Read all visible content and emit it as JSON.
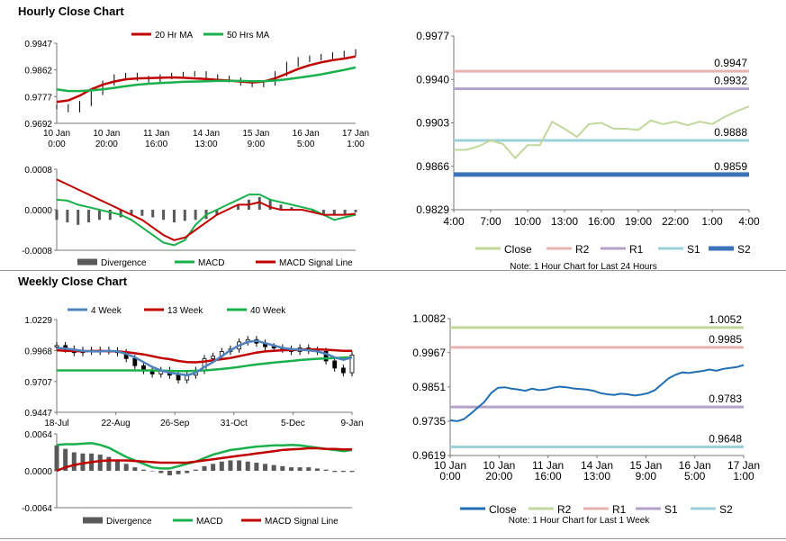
{
  "sections": {
    "hourly_title": "Hourly Close Chart",
    "weekly_title": "Weekly Close Chart"
  },
  "colors": {
    "ma_short": "#c00000",
    "ma_long": "#1ab04c",
    "ma_4w": "#4f81bd",
    "close_light": "#c3d69b",
    "close_dark": "#1f6fb2",
    "r2": "#e6b3b3",
    "r1": "#b3a2c7",
    "s1": "#9bd1d9",
    "s2": "#3b73b9",
    "r2_weekly": "#c3d69b",
    "divergence": "#595959"
  },
  "chart_data": [
    {
      "id": "hourly_price",
      "type": "line",
      "legend": [
        "20 Hr MA",
        "50 Hrs MA"
      ],
      "ylim": [
        0.9692,
        0.9947
      ],
      "yticks": [
        "0.9947",
        "0.9862",
        "0.9777",
        "0.9692"
      ],
      "xticks": [
        "10 Jan\n0:00",
        "10 Jan\n20:00",
        "11 Jan\n16:00",
        "14 Jan\n13:00",
        "15 Jan\n9:00",
        "16 Jan\n5:00",
        "17 Jan\n1:00"
      ],
      "price_approx": [
        0.9745,
        0.9735,
        0.9755,
        0.979,
        0.982,
        0.984,
        0.9845,
        0.9835,
        0.983,
        0.984,
        0.9845,
        0.9848,
        0.985,
        0.984,
        0.9835,
        0.983,
        0.982,
        0.9815,
        0.982,
        0.985,
        0.988,
        0.9895,
        0.99,
        0.9905,
        0.991,
        0.9915,
        0.992
      ],
      "series": [
        {
          "name": "20 Hr MA",
          "values": [
            0.976,
            0.9765,
            0.978,
            0.98,
            0.9815,
            0.9825,
            0.9832,
            0.9835,
            0.9836,
            0.9837,
            0.9838,
            0.9837,
            0.9835,
            0.9833,
            0.983,
            0.9828,
            0.9825,
            0.9822,
            0.9825,
            0.9835,
            0.985,
            0.9865,
            0.9877,
            0.9886,
            0.9893,
            0.9898,
            0.9905
          ]
        },
        {
          "name": "50 Hrs MA",
          "values": [
            0.98,
            0.9795,
            0.9795,
            0.9797,
            0.98,
            0.9805,
            0.981,
            0.9815,
            0.9818,
            0.982,
            0.9822,
            0.9824,
            0.9825,
            0.9826,
            0.9827,
            0.9827,
            0.9827,
            0.9826,
            0.9826,
            0.9828,
            0.9832,
            0.9837,
            0.9842,
            0.9848,
            0.9855,
            0.9862,
            0.987
          ]
        }
      ]
    },
    {
      "id": "hourly_macd",
      "type": "line",
      "legend": [
        "Divergence",
        "MACD",
        "MACD Signal Line"
      ],
      "ylim": [
        -0.0008,
        0.0008
      ],
      "yticks": [
        "0.0008",
        "0.0000",
        "-0.0008"
      ],
      "divergence": [
        -0.0002,
        -0.00025,
        -0.0003,
        -0.00025,
        -0.0002,
        -0.0002,
        -0.00015,
        -0.0001,
        -0.00012,
        -0.00015,
        -0.0002,
        -0.00025,
        -0.00022,
        -0.0002,
        -0.00018,
        -0.0001,
        0.0,
        0.0001,
        0.0002,
        0.00025,
        0.0002,
        0.0001,
        5e-05,
        0.0,
        -5e-05,
        -8e-05,
        -0.0001,
        -8e-05,
        -5e-05
      ],
      "series": [
        {
          "name": "MACD",
          "values": [
            0.0002,
            0.00018,
            0.0001,
            5e-05,
            0.0,
            -5e-05,
            -0.0001,
            -0.0002,
            -0.00035,
            -0.0005,
            -0.00065,
            -0.0007,
            -0.0006,
            -0.0003,
            -0.0001,
            0.0,
            0.0001,
            0.0002,
            0.0003,
            0.0003,
            0.0002,
            0.00015,
            0.0001,
            5e-05,
            0.0,
            -0.0001,
            -0.0002,
            -0.00015,
            -0.0001
          ]
        },
        {
          "name": "MACD Signal Line",
          "values": [
            0.0006,
            0.0005,
            0.0004,
            0.0003,
            0.0002,
            0.0001,
            0.0,
            -0.0001,
            -0.0002,
            -0.00035,
            -0.0005,
            -0.0006,
            -0.00055,
            -0.0004,
            -0.00025,
            -0.0001,
            0.0,
            0.0001,
            0.0001,
            0.00015,
            5e-05,
            0.0,
            0.0,
            0.0,
            -5e-05,
            -0.0001,
            -0.0001,
            -0.0001,
            -8e-05
          ]
        }
      ]
    },
    {
      "id": "hourly_levels",
      "type": "line",
      "ylim": [
        0.9829,
        0.9977
      ],
      "yticks": [
        "0.9977",
        "0.9940",
        "0.9903",
        "0.9866",
        "0.9829"
      ],
      "xticks": [
        "4:00",
        "7:00",
        "10:00",
        "13:00",
        "16:00",
        "19:00",
        "22:00",
        "1:00",
        "4:00"
      ],
      "legend": [
        "Close",
        "R2",
        "R1",
        "S1",
        "S2"
      ],
      "levels": {
        "R2": 0.9947,
        "R1": 0.9932,
        "S1": 0.9888,
        "S2": 0.9859
      },
      "level_labels": {
        "R2": "0.9947",
        "R1": "0.9932",
        "S1": "0.9888",
        "S2": "0.9859"
      },
      "close": [
        0.988,
        0.988,
        0.9883,
        0.9888,
        0.9885,
        0.9873,
        0.9884,
        0.9884,
        0.9904,
        0.9898,
        0.9891,
        0.9902,
        0.9903,
        0.9898,
        0.9898,
        0.9897,
        0.9905,
        0.9902,
        0.9904,
        0.9901,
        0.9904,
        0.9902,
        0.9908,
        0.9913,
        0.9917
      ],
      "note": "Note: 1 Hour Chart for Last 24 Hours"
    },
    {
      "id": "weekly_price",
      "type": "line",
      "legend": [
        "4 Week",
        "13 Week",
        "40 Week"
      ],
      "ylim": [
        0.9447,
        1.0229
      ],
      "yticks": [
        "1.0229",
        "0.9968",
        "0.9707",
        "0.9447"
      ],
      "xticks": [
        "18-Jul",
        "22-Aug",
        "26-Sep",
        "31-Oct",
        "5-Dec",
        "9-Jan"
      ],
      "close_approx": [
        1.001,
        0.998,
        0.995,
        0.997,
        0.996,
        0.997,
        0.9965,
        0.995,
        0.99,
        0.984,
        0.98,
        0.977,
        0.98,
        0.976,
        0.972,
        0.976,
        0.98,
        0.99,
        0.992,
        0.996,
        0.998,
        1.004,
        1.006,
        1.003,
        1.0,
        0.999,
        0.998,
        0.996,
        0.999,
        0.997,
        0.996,
        0.988,
        0.982,
        0.978,
        0.993
      ],
      "series": [
        {
          "name": "4 Week",
          "values": [
            0.999,
            0.9985,
            0.9975,
            0.9965,
            0.996,
            0.996,
            0.9965,
            0.996,
            0.994,
            0.991,
            0.987,
            0.983,
            0.98,
            0.978,
            0.977,
            0.976,
            0.978,
            0.983,
            0.987,
            0.992,
            0.997,
            1.001,
            1.004,
            1.005,
            1.003,
            1.001,
            0.999,
            0.998,
            0.9975,
            0.997,
            0.996,
            0.994,
            0.991,
            0.989,
            0.991
          ]
        },
        {
          "name": "13 Week",
          "values": [
            0.997,
            0.9965,
            0.9963,
            0.9962,
            0.9963,
            0.9965,
            0.9962,
            0.996,
            0.9955,
            0.9945,
            0.9935,
            0.992,
            0.9905,
            0.9895,
            0.988,
            0.987,
            0.9868,
            0.9875,
            0.9885,
            0.9895,
            0.9905,
            0.992,
            0.9935,
            0.995,
            0.996,
            0.9965,
            0.997,
            0.9972,
            0.9975,
            0.9978,
            0.9978,
            0.9975,
            0.997,
            0.9965,
            0.9965
          ]
        },
        {
          "name": "40 Week",
          "values": [
            0.98,
            0.98,
            0.98,
            0.98,
            0.98,
            0.98,
            0.98,
            0.98,
            0.98,
            0.98,
            0.98,
            0.98,
            0.9798,
            0.9796,
            0.9795,
            0.9795,
            0.9797,
            0.98,
            0.9805,
            0.9812,
            0.982,
            0.983,
            0.984,
            0.985,
            0.9858,
            0.9866,
            0.9873,
            0.988,
            0.9887,
            0.9893,
            0.9898,
            0.9902,
            0.9905,
            0.9908,
            0.991
          ]
        }
      ]
    },
    {
      "id": "weekly_macd",
      "type": "line",
      "legend": [
        "Divergence",
        "MACD",
        "MACD Signal Line"
      ],
      "ylim": [
        -0.0064,
        0.0064
      ],
      "yticks": [
        "0.0064",
        "0.0000",
        "-0.0064"
      ],
      "divergence": [
        0.0044,
        0.0038,
        0.0032,
        0.003,
        0.003,
        0.0028,
        0.0024,
        0.0018,
        0.0012,
        0.0006,
        0.0002,
        0.0,
        -0.0004,
        -0.0008,
        -0.0006,
        -0.0004,
        0.0002,
        0.0008,
        0.0012,
        0.0016,
        0.0018,
        0.0018,
        0.0016,
        0.0014,
        0.0012,
        0.001,
        0.0008,
        0.0006,
        0.0006,
        0.0006,
        0.0004,
        0.0002,
        -0.0002,
        -0.0002,
        -0.0002
      ],
      "series": [
        {
          "name": "MACD",
          "values": [
            0.0045,
            0.0046,
            0.0046,
            0.0047,
            0.0048,
            0.0045,
            0.004,
            0.0032,
            0.0024,
            0.0018,
            0.0012,
            0.0006,
            0.0004,
            0.0004,
            0.0008,
            0.0012,
            0.0016,
            0.0022,
            0.0028,
            0.0032,
            0.0036,
            0.0038,
            0.004,
            0.0042,
            0.0043,
            0.0044,
            0.0044,
            0.0045,
            0.0044,
            0.0042,
            0.004,
            0.0038,
            0.0036,
            0.0034,
            0.0036
          ]
        },
        {
          "name": "MACD Signal Line",
          "values": [
            0.0,
            0.0006,
            0.001,
            0.0013,
            0.0015,
            0.0017,
            0.0018,
            0.0018,
            0.0018,
            0.0017,
            0.0016,
            0.0015,
            0.0014,
            0.0014,
            0.0014,
            0.0014,
            0.0016,
            0.0018,
            0.002,
            0.0022,
            0.0024,
            0.0026,
            0.0028,
            0.003,
            0.0032,
            0.0034,
            0.0036,
            0.0037,
            0.0038,
            0.0039,
            0.0039,
            0.0038,
            0.0038,
            0.0037,
            0.0037
          ]
        }
      ]
    },
    {
      "id": "weekly_levels",
      "type": "line",
      "ylim": [
        0.9619,
        1.0082
      ],
      "yticks": [
        "1.0082",
        "0.9967",
        "0.9851",
        "0.9735",
        "0.9619"
      ],
      "xticks": [
        "10 Jan\n0:00",
        "10 Jan\n20:00",
        "11 Jan\n16:00",
        "14 Jan\n13:00",
        "15 Jan\n9:00",
        "16 Jan\n5:00",
        "17 Jan\n1:00"
      ],
      "legend": [
        "Close",
        "R2",
        "R1",
        "S1",
        "S2"
      ],
      "levels": {
        "R2": 1.0052,
        "R1": 0.9985,
        "S1": 0.9783,
        "S2": 0.9648
      },
      "level_labels": {
        "R2": "1.0052",
        "R1": "0.9985",
        "S1": "0.9783",
        "S2": "0.9648"
      },
      "close": [
        0.9738,
        0.9735,
        0.9742,
        0.976,
        0.978,
        0.98,
        0.983,
        0.9848,
        0.985,
        0.9845,
        0.9842,
        0.9838,
        0.9845,
        0.984,
        0.9842,
        0.9848,
        0.9852,
        0.985,
        0.9846,
        0.9844,
        0.9842,
        0.9838,
        0.983,
        0.9826,
        0.9824,
        0.9828,
        0.9826,
        0.9822,
        0.9825,
        0.983,
        0.984,
        0.986,
        0.988,
        0.9892,
        0.99,
        0.9898,
        0.9902,
        0.9905,
        0.991,
        0.9906,
        0.9912,
        0.9915,
        0.9918,
        0.9925
      ],
      "note": "Note: 1 Hour Chart for Last 1 Week"
    }
  ]
}
